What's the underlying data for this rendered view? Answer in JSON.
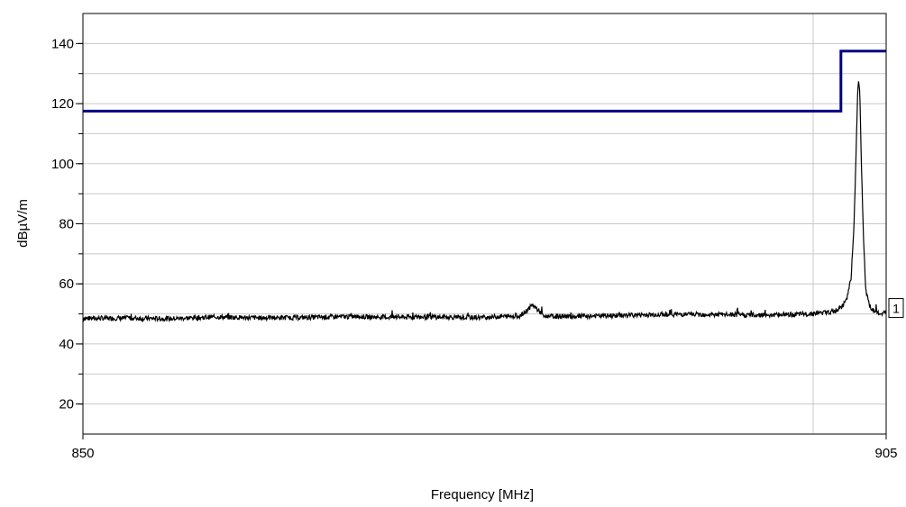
{
  "chart_data": {
    "type": "line",
    "title": "",
    "xlabel": "Frequency [MHz]",
    "ylabel": "dBµV/m",
    "xlim": [
      850,
      905
    ],
    "ylim": [
      10,
      150
    ],
    "x_ticks": [
      850,
      905
    ],
    "y_ticks": [
      20,
      40,
      60,
      80,
      100,
      120,
      140
    ],
    "y_minor_step": 10,
    "grid": true,
    "x_gridlines": [
      900
    ],
    "colors": {
      "limit": "#000080",
      "trace": "#000000",
      "grid": "#c8c8c8"
    },
    "marker": {
      "label": "1",
      "value": 50
    },
    "series": [
      {
        "name": "",
        "role": "limit",
        "x": [
          850,
          901.9,
          901.9,
          905
        ],
        "y": [
          117.5,
          117.5,
          137.5,
          137.5
        ]
      },
      {
        "name": "",
        "role": "measurement",
        "noise_floor": 48.5,
        "points": [
          [
            850,
            48.5
          ],
          [
            853,
            48.6
          ],
          [
            856,
            48.4
          ],
          [
            859,
            49.0
          ],
          [
            862,
            48.7
          ],
          [
            865,
            48.8
          ],
          [
            868,
            49.1
          ],
          [
            871,
            48.9
          ],
          [
            874,
            49.0
          ],
          [
            877,
            48.8
          ],
          [
            880,
            49.4
          ],
          [
            880.8,
            53.0
          ],
          [
            881.6,
            49.2
          ],
          [
            884,
            49.2
          ],
          [
            887,
            49.5
          ],
          [
            890,
            49.9
          ],
          [
            893,
            49.8
          ],
          [
            896,
            49.6
          ],
          [
            899,
            49.8
          ],
          [
            901,
            50.5
          ],
          [
            901.6,
            51.0
          ],
          [
            902.0,
            52.5
          ],
          [
            902.3,
            55.0
          ],
          [
            902.6,
            62.0
          ],
          [
            902.8,
            80.0
          ],
          [
            902.95,
            105.0
          ],
          [
            903.05,
            125.0
          ],
          [
            903.12,
            128.0
          ],
          [
            903.2,
            123.0
          ],
          [
            903.3,
            100.0
          ],
          [
            903.45,
            75.0
          ],
          [
            903.6,
            58.0
          ],
          [
            903.9,
            52.0
          ],
          [
            904.4,
            50.2
          ],
          [
            905,
            50.0
          ]
        ]
      }
    ]
  }
}
